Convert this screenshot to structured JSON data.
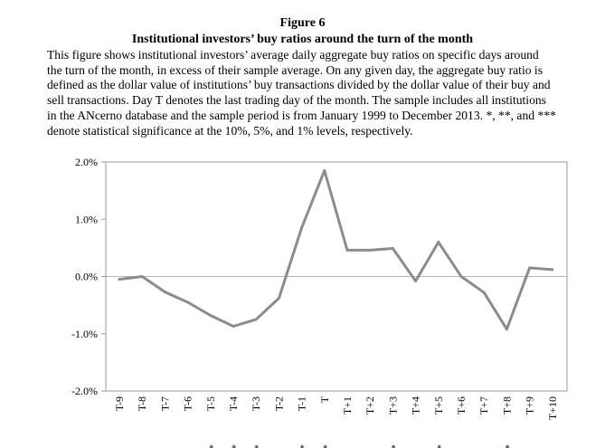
{
  "figure": {
    "number": "Figure 6",
    "title": "Institutional investors’ buy ratios around the turn of the month",
    "caption_lines": [
      "This figure shows institutional investors’ average daily aggregate buy ratios on specific days around",
      "the turn of the month, in excess of their sample average. On any given day, the aggregate buy ratio is",
      "defined as the dollar value of institutions’ buy transactions divided by the dollar value of their buy and",
      "sell transactions. Day T denotes the last trading day of the month. The sample includes all institutions",
      "in the ANcerno database and the sample period is from January 1999 to December 2013. *, **, and ***",
      "denote statistical significance at the 10%, 5%, and 1% levels, respectively."
    ]
  },
  "chart_data": {
    "type": "line",
    "categories": [
      "T-9",
      "T-8",
      "T-7",
      "T-6",
      "T-5",
      "T-4",
      "T-3",
      "T-2",
      "T-1",
      "T",
      "T+1",
      "T+2",
      "T+3",
      "T+4",
      "T+5",
      "T+6",
      "T+7",
      "T+8",
      "T+9",
      "T+10"
    ],
    "series": [
      {
        "values": [
          -0.05,
          0.0,
          -0.27,
          -0.45,
          -0.68,
          -0.87,
          -0.75,
          -0.38,
          0.85,
          1.85,
          0.46,
          0.46,
          0.49,
          -0.08,
          0.6,
          0.0,
          -0.28,
          -0.92,
          0.15,
          0.12
        ],
        "color": "#8c8c8c"
      }
    ],
    "significance": [
      "",
      "",
      "",
      "",
      "**",
      "***",
      "**",
      "",
      "***",
      "***",
      "",
      "",
      "**",
      "",
      "**",
      "",
      "",
      "***",
      "",
      ""
    ],
    "y_ticks": [
      "2.0%",
      "1.0%",
      "0.0%",
      "-1.0%",
      "-2.0%"
    ],
    "ylim": [
      -2.0,
      2.0
    ],
    "zero_line": true,
    "grid": false,
    "legend": "none"
  }
}
